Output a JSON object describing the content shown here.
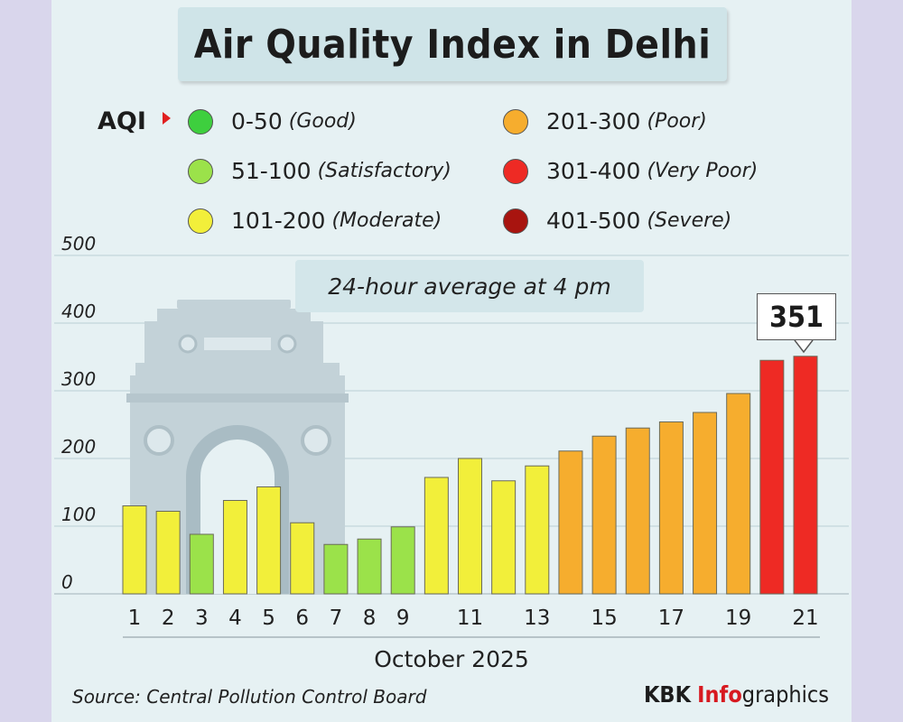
{
  "title": "Air Quality Index in Delhi",
  "legend": {
    "heading": "AQI",
    "items": [
      {
        "range": "0-50",
        "label": "(Good)",
        "color": "#3ecf3e"
      },
      {
        "range": "51-100",
        "label": "(Satisfactory)",
        "color": "#9be24a"
      },
      {
        "range": "101-200",
        "label": "(Moderate)",
        "color": "#f2ef3a"
      },
      {
        "range": "201-300",
        "label": "(Poor)",
        "color": "#f6ad2e"
      },
      {
        "range": "301-400",
        "label": "(Very Poor)",
        "color": "#ee2a24"
      },
      {
        "range": "401-500",
        "label": "(Severe)",
        "color": "#a8140f"
      }
    ]
  },
  "subtitle": "24-hour average at 4 pm",
  "callout": "351",
  "source": "Source: Central Pollution Control Board",
  "credit": {
    "part1": "KBK",
    "part2": "Info",
    "part3": "graphics"
  },
  "chart_data": {
    "type": "bar",
    "title": "Air Quality Index in Delhi",
    "subtitle": "24-hour average at 4 pm",
    "xlabel": "October 2025",
    "ylabel": "",
    "ylim": [
      0,
      500
    ],
    "yticks": [
      0,
      100,
      200,
      300,
      400,
      500
    ],
    "categories": [
      "1",
      "2",
      "3",
      "4",
      "5",
      "6",
      "7",
      "8",
      "9",
      "10",
      "11",
      "12",
      "13",
      "14",
      "15",
      "16",
      "17",
      "18",
      "19",
      "20",
      "21"
    ],
    "x_tick_labels": [
      "1",
      "2",
      "3",
      "4",
      "5",
      "6",
      "7",
      "8",
      "9",
      "",
      "11",
      "",
      "13",
      "",
      "15",
      "",
      "17",
      "",
      "19",
      "",
      "21"
    ],
    "values": [
      130,
      122,
      88,
      138,
      158,
      105,
      73,
      81,
      99,
      172,
      200,
      167,
      189,
      211,
      233,
      245,
      254,
      268,
      296,
      345,
      351
    ],
    "annotations": [
      {
        "category": "21",
        "text": "351"
      }
    ],
    "grid": true,
    "legend_position": "top"
  }
}
